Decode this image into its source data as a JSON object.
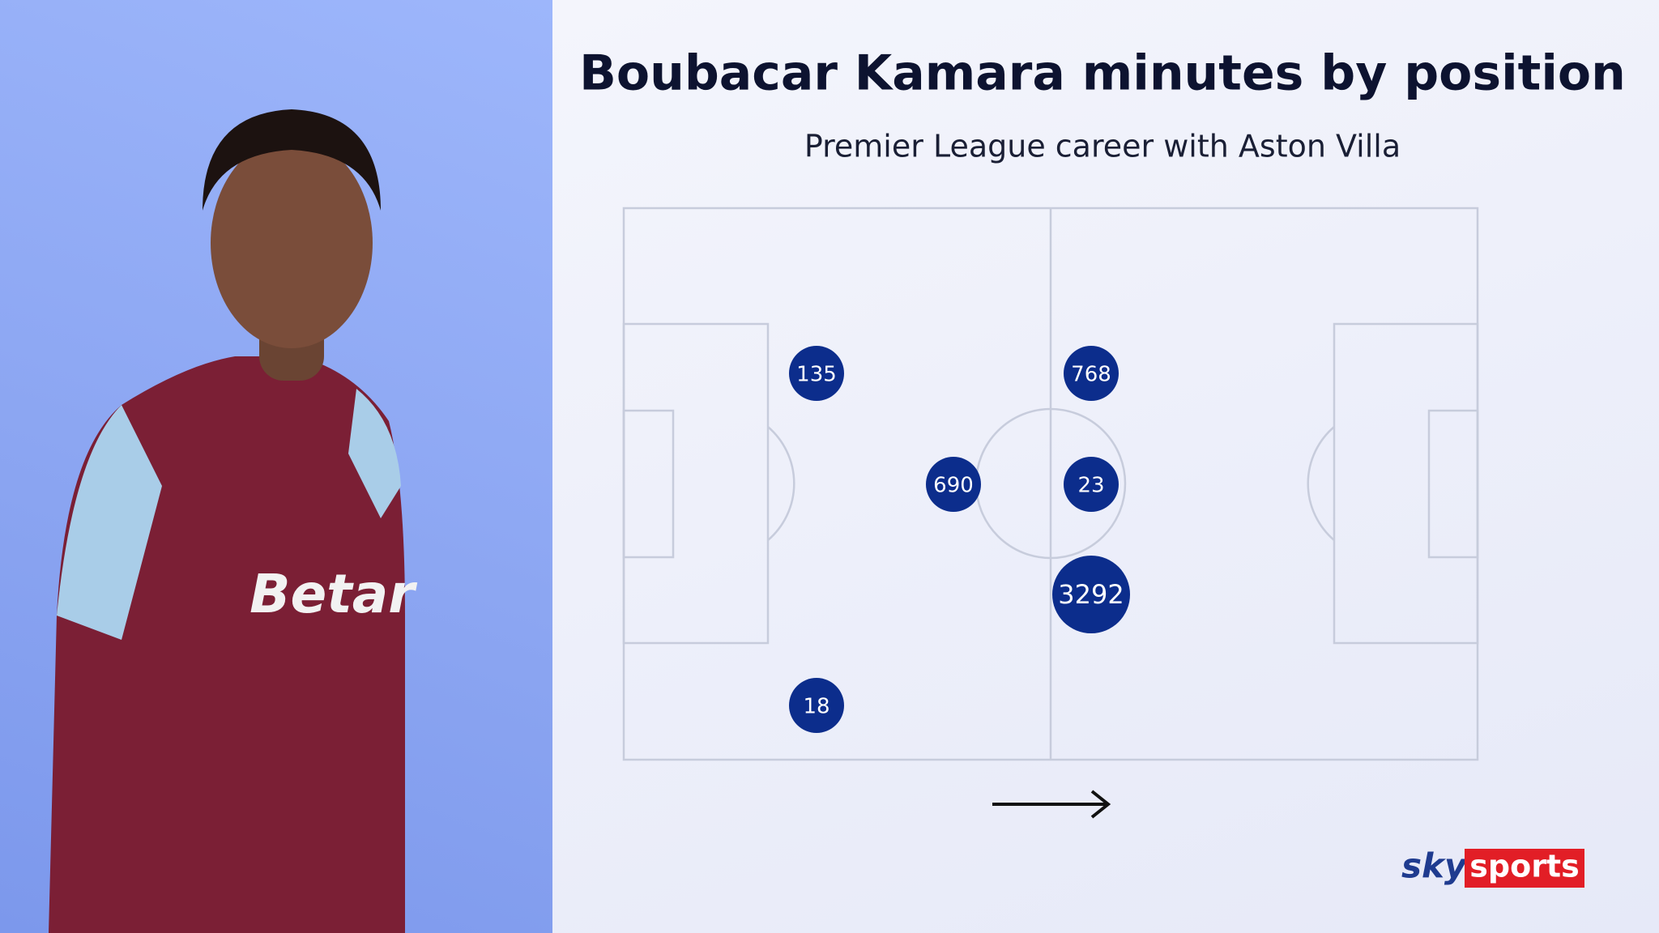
{
  "header": {
    "title": "Boubacar Kamara minutes by position",
    "subtitle": "Premier League career with Aston Villa"
  },
  "pitch": {
    "positions": [
      {
        "minutes": 135
      },
      {
        "minutes": 768
      },
      {
        "minutes": 690
      },
      {
        "minutes": 23
      },
      {
        "minutes": 3292
      },
      {
        "minutes": 18
      }
    ]
  },
  "logo": {
    "brand": "sky",
    "product": "sports"
  }
}
